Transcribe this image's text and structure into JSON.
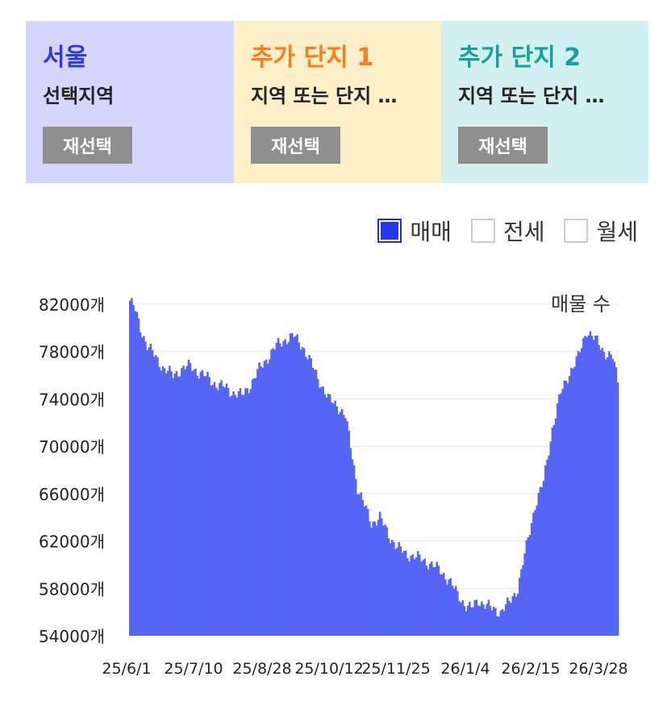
{
  "panels": [
    {
      "title": "서울",
      "subtitle": "선택지역",
      "button": "재선택",
      "bg": "#d4d7fb",
      "title_color": "#2f3ae6"
    },
    {
      "title": "추가 단지 1",
      "subtitle": "지역 또는 단지 …",
      "button": "재선택",
      "bg": "#fdefc7",
      "title_color": "#ff7b1c"
    },
    {
      "title": "추가 단지 2",
      "subtitle": "지역 또는 단지 …",
      "button": "재선택",
      "bg": "#d3f0f1",
      "title_color": "#17a0a0"
    }
  ],
  "legend": [
    {
      "label": "매매",
      "checked": true
    },
    {
      "label": "전세",
      "checked": false
    },
    {
      "label": "월세",
      "checked": false
    }
  ],
  "chart_data": {
    "type": "bar",
    "title": "매물 수",
    "color": "#5566f6",
    "y_ticks": [
      "82000개",
      "78000개",
      "74000개",
      "70000개",
      "66000개",
      "62000개",
      "58000개",
      "54000개"
    ],
    "x_ticks": [
      "25/6/1",
      "25/7/10",
      "25/8/28",
      "25/10/12",
      "25/11/25",
      "26/1/4",
      "26/2/15",
      "26/3/28"
    ],
    "ylim": [
      54000,
      82000
    ],
    "grid": true,
    "anchors": [
      [
        0,
        82300
      ],
      [
        3,
        81500
      ],
      [
        6,
        80000
      ],
      [
        10,
        78500
      ],
      [
        15,
        77500
      ],
      [
        20,
        76500
      ],
      [
        25,
        76000
      ],
      [
        30,
        76500
      ],
      [
        35,
        76800
      ],
      [
        40,
        76200
      ],
      [
        45,
        75800
      ],
      [
        50,
        75200
      ],
      [
        55,
        75000
      ],
      [
        60,
        74500
      ],
      [
        65,
        74300
      ],
      [
        70,
        75200
      ],
      [
        75,
        76500
      ],
      [
        80,
        77500
      ],
      [
        85,
        78500
      ],
      [
        90,
        79000
      ],
      [
        95,
        79300
      ],
      [
        100,
        78500
      ],
      [
        105,
        77000
      ],
      [
        110,
        75500
      ],
      [
        115,
        74000
      ],
      [
        120,
        73500
      ],
      [
        125,
        72500
      ],
      [
        128,
        70000
      ],
      [
        132,
        66500
      ],
      [
        136,
        65000
      ],
      [
        140,
        63500
      ],
      [
        145,
        64000
      ],
      [
        150,
        62500
      ],
      [
        155,
        61500
      ],
      [
        160,
        60900
      ],
      [
        165,
        60700
      ],
      [
        170,
        60400
      ],
      [
        175,
        60000
      ],
      [
        180,
        59500
      ],
      [
        185,
        58700
      ],
      [
        190,
        57500
      ],
      [
        195,
        56500
      ],
      [
        198,
        56300
      ],
      [
        202,
        57000
      ],
      [
        206,
        56600
      ],
      [
        210,
        56300
      ],
      [
        215,
        56000
      ],
      [
        220,
        56800
      ],
      [
        225,
        58000
      ],
      [
        230,
        61500
      ],
      [
        235,
        65000
      ],
      [
        240,
        67000
      ],
      [
        245,
        71500
      ],
      [
        250,
        74500
      ],
      [
        255,
        76200
      ],
      [
        260,
        77500
      ],
      [
        265,
        79800
      ],
      [
        270,
        79000
      ],
      [
        275,
        78000
      ],
      [
        280,
        77500
      ],
      [
        283,
        75500
      ]
    ]
  }
}
